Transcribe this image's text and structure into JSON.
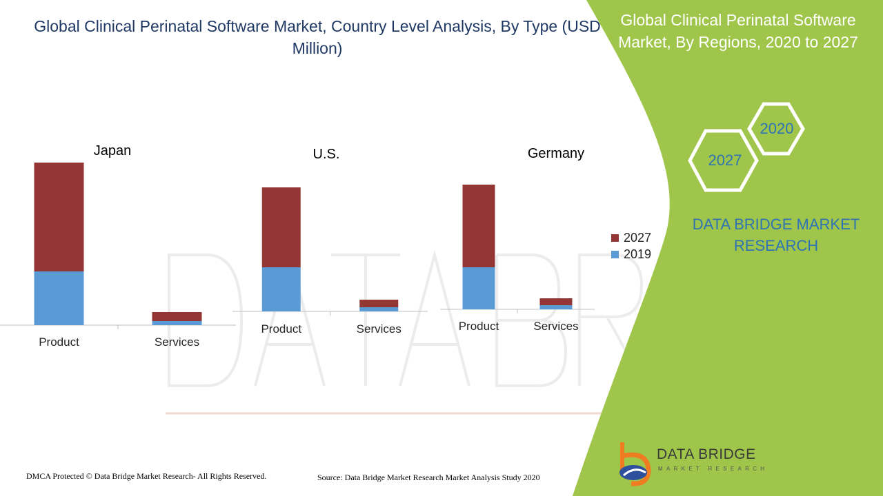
{
  "title": "Global Clinical Perinatal Software Market, Country Level Analysis, By Type (USD Million)",
  "side_panel": {
    "title": "Global Clinical Perinatal Software Market, By Regions, 2020 to 2027",
    "hex_years": [
      "2020",
      "2027"
    ],
    "brand": "DATA BRIDGE MARKET RESEARCH"
  },
  "legend": [
    {
      "label": "2027",
      "color": "#943634"
    },
    {
      "label": "2019",
      "color": "#5b9bd5"
    }
  ],
  "footer": {
    "copyright": "DMCA Protected © Data Bridge Market Research- All Rights Reserved.",
    "source": "Source: Data Bridge Market Research Market Analysis Study 2020"
  },
  "logo": {
    "name": "DATA BRIDGE",
    "tagline": "MARKET RESEARCH"
  },
  "colors": {
    "accent_green": "#9fc54a",
    "series_2027": "#943634",
    "series_2019": "#5b9bd5",
    "title_blue": "#1f3864"
  },
  "chart_data": [
    {
      "type": "bar",
      "stacked": true,
      "title": "Japan",
      "categories": [
        "Product",
        "Services"
      ],
      "series": [
        {
          "name": "2019",
          "values": [
            78,
            6
          ]
        },
        {
          "name": "2027",
          "values": [
            158,
            13
          ]
        }
      ],
      "ylim": [
        0,
        240
      ]
    },
    {
      "type": "bar",
      "stacked": true,
      "title": "U.S.",
      "categories": [
        "Product",
        "Services"
      ],
      "series": [
        {
          "name": "2019",
          "values": [
            64,
            6
          ]
        },
        {
          "name": "2027",
          "values": [
            116,
            11
          ]
        }
      ],
      "ylim": [
        0,
        240
      ]
    },
    {
      "type": "bar",
      "stacked": true,
      "title": "Germany",
      "categories": [
        "Product",
        "Services"
      ],
      "series": [
        {
          "name": "2019",
          "values": [
            61,
            6
          ]
        },
        {
          "name": "2027",
          "values": [
            120,
            10
          ]
        }
      ],
      "ylim": [
        0,
        240
      ]
    }
  ]
}
